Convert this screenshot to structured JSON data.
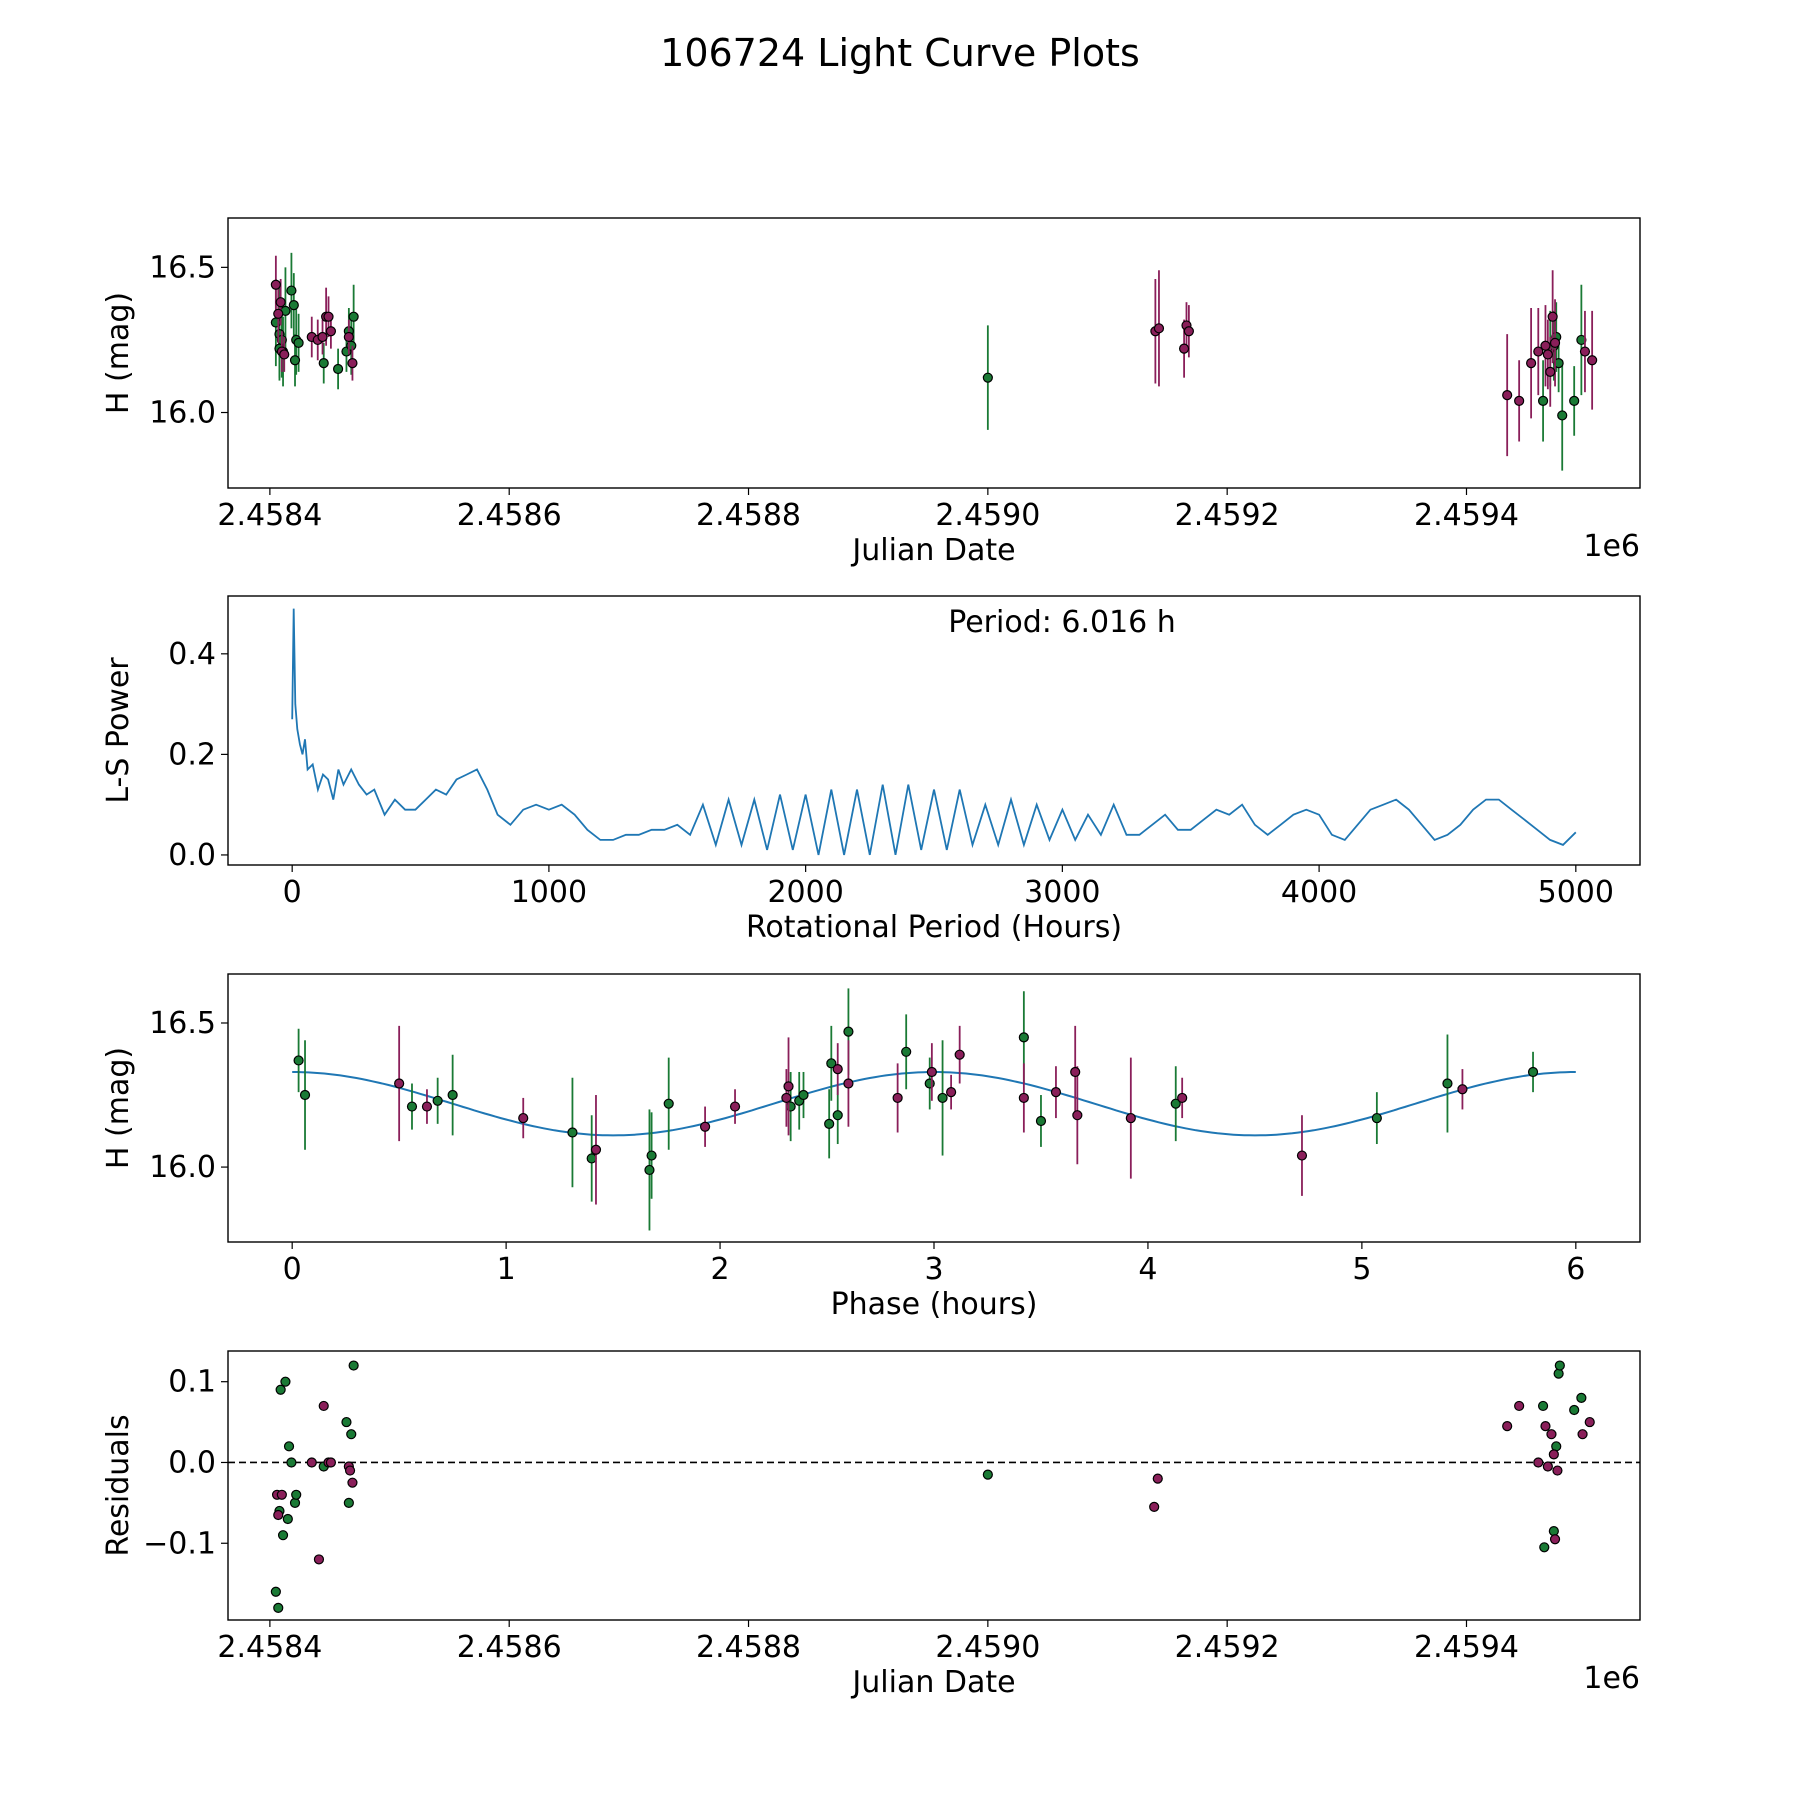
{
  "figure_title": "106724 Light Curve Plots",
  "colors": {
    "green": "#1a7a35",
    "purple": "#8a1f5a",
    "fit": "#1f77b4",
    "marker_edge": "#000000"
  },
  "chart_data": [
    {
      "id": "lightcurve",
      "type": "scatter",
      "title": "",
      "xlabel": "Julian Date",
      "ylabel": "H (mag)",
      "offset_label": "1e6",
      "xlim": [
        2458365,
        2459545
      ],
      "ylim": [
        15.74,
        16.67
      ],
      "xticks": [
        2458400,
        2458600,
        2458800,
        2459000,
        2459200,
        2459400
      ],
      "xtick_labels": [
        "2.4584",
        "2.4586",
        "2.4588",
        "2.4590",
        "2.4592",
        "2.4594"
      ],
      "yticks": [
        16.0,
        16.5
      ],
      "ytick_labels": [
        "16.0",
        "16.5"
      ],
      "series": [
        {
          "name": "green",
          "color": "#1a7a35",
          "x": [
            2458405,
            2458408,
            2458408,
            2458410,
            2458411,
            2458413,
            2458418,
            2458420,
            2458421,
            2458422,
            2458424,
            2458445,
            2458457,
            2458464,
            2458466,
            2458468,
            2458470,
            2459000,
            2459464,
            2459470,
            2459473,
            2459475,
            2459477,
            2459480,
            2459490,
            2459496
          ],
          "y": [
            16.31,
            16.27,
            16.22,
            16.25,
            16.21,
            16.35,
            16.42,
            16.37,
            16.18,
            16.25,
            16.24,
            16.17,
            16.15,
            16.21,
            16.28,
            16.23,
            16.33,
            16.12,
            16.04,
            16.22,
            16.23,
            16.26,
            16.17,
            15.99,
            16.04,
            16.25
          ],
          "err": [
            0.15,
            0.16,
            0.1,
            0.13,
            0.12,
            0.15,
            0.13,
            0.11,
            0.09,
            0.12,
            0.1,
            0.07,
            0.07,
            0.07,
            0.08,
            0.1,
            0.11,
            0.18,
            0.14,
            0.13,
            0.12,
            0.12,
            0.1,
            0.19,
            0.12,
            0.19
          ]
        },
        {
          "name": "purple",
          "color": "#8a1f5a",
          "x": [
            2458405,
            2458407,
            2458409,
            2458410,
            2458412,
            2458435,
            2458440,
            2458444,
            2458447,
            2458449,
            2458451,
            2458466,
            2458469,
            2459140,
            2459143,
            2459164,
            2459166,
            2459168,
            2459434,
            2459444,
            2459454,
            2459460,
            2459466,
            2459468,
            2459470,
            2459472,
            2459474,
            2459499,
            2459505
          ],
          "y": [
            16.44,
            16.34,
            16.38,
            16.21,
            16.2,
            16.26,
            16.25,
            16.26,
            16.33,
            16.33,
            16.28,
            16.26,
            16.17,
            16.28,
            16.29,
            16.22,
            16.3,
            16.28,
            16.06,
            16.04,
            16.17,
            16.21,
            16.23,
            16.2,
            16.14,
            16.33,
            16.24,
            16.21,
            16.18
          ],
          "err": [
            0.1,
            0.1,
            0.08,
            0.07,
            0.06,
            0.07,
            0.07,
            0.06,
            0.1,
            0.07,
            0.06,
            0.06,
            0.06,
            0.18,
            0.2,
            0.1,
            0.08,
            0.09,
            0.21,
            0.14,
            0.19,
            0.15,
            0.14,
            0.12,
            0.12,
            0.16,
            0.15,
            0.14,
            0.17
          ]
        }
      ]
    },
    {
      "id": "periodogram",
      "type": "line",
      "title": "",
      "xlabel": "Rotational Period (Hours)",
      "ylabel": "L-S Power",
      "annotation": "Period: 6.016 h",
      "xlim": [
        -250,
        5250
      ],
      "ylim": [
        -0.02,
        0.515
      ],
      "xticks": [
        0,
        1000,
        2000,
        3000,
        4000,
        5000
      ],
      "xtick_labels": [
        "0",
        "1000",
        "2000",
        "3000",
        "4000",
        "5000"
      ],
      "yticks": [
        0.0,
        0.2,
        0.4
      ],
      "ytick_labels": [
        "0.0",
        "0.2",
        "0.4"
      ],
      "series": [
        {
          "name": "L-S Power",
          "color": "#1f77b4",
          "x": [
            0,
            6,
            12,
            20,
            30,
            40,
            50,
            60,
            80,
            100,
            120,
            140,
            160,
            180,
            200,
            230,
            260,
            290,
            320,
            360,
            400,
            440,
            480,
            520,
            560,
            600,
            640,
            680,
            720,
            760,
            800,
            850,
            900,
            950,
            1000,
            1050,
            1100,
            1150,
            1200,
            1250,
            1300,
            1350,
            1400,
            1450,
            1500,
            1550,
            1600,
            1650,
            1700,
            1750,
            1800,
            1850,
            1900,
            1950,
            2000,
            2050,
            2100,
            2150,
            2200,
            2250,
            2300,
            2350,
            2400,
            2450,
            2500,
            2550,
            2600,
            2650,
            2700,
            2750,
            2800,
            2850,
            2900,
            2950,
            3000,
            3050,
            3100,
            3150,
            3200,
            3250,
            3300,
            3350,
            3400,
            3450,
            3500,
            3550,
            3600,
            3650,
            3700,
            3750,
            3800,
            3850,
            3900,
            3950,
            4000,
            4050,
            4100,
            4150,
            4200,
            4250,
            4300,
            4350,
            4400,
            4450,
            4500,
            4550,
            4600,
            4650,
            4700,
            4750,
            4800,
            4850,
            4900,
            4950,
            5000
          ],
          "y": [
            0.27,
            0.49,
            0.3,
            0.25,
            0.22,
            0.2,
            0.23,
            0.17,
            0.18,
            0.13,
            0.16,
            0.15,
            0.11,
            0.17,
            0.14,
            0.17,
            0.14,
            0.12,
            0.13,
            0.08,
            0.11,
            0.09,
            0.09,
            0.11,
            0.13,
            0.12,
            0.15,
            0.16,
            0.17,
            0.13,
            0.08,
            0.06,
            0.09,
            0.1,
            0.09,
            0.1,
            0.08,
            0.05,
            0.03,
            0.03,
            0.04,
            0.04,
            0.05,
            0.05,
            0.06,
            0.04,
            0.1,
            0.02,
            0.11,
            0.02,
            0.11,
            0.01,
            0.12,
            0.01,
            0.12,
            0.0,
            0.13,
            0.0,
            0.13,
            0.0,
            0.14,
            0.0,
            0.14,
            0.01,
            0.13,
            0.01,
            0.13,
            0.02,
            0.1,
            0.02,
            0.11,
            0.02,
            0.1,
            0.03,
            0.09,
            0.03,
            0.08,
            0.04,
            0.1,
            0.04,
            0.04,
            0.06,
            0.08,
            0.05,
            0.05,
            0.07,
            0.09,
            0.08,
            0.1,
            0.06,
            0.04,
            0.06,
            0.08,
            0.09,
            0.08,
            0.04,
            0.03,
            0.06,
            0.09,
            0.1,
            0.11,
            0.09,
            0.06,
            0.03,
            0.04,
            0.06,
            0.09,
            0.11,
            0.11,
            0.09,
            0.07,
            0.05,
            0.03,
            0.02,
            0.045
          ]
        }
      ]
    },
    {
      "id": "phased",
      "type": "scatter",
      "title": "",
      "xlabel": "Phase (hours)",
      "ylabel": "H (mag)",
      "xlim": [
        -0.3,
        6.3
      ],
      "ylim": [
        15.74,
        16.67
      ],
      "xticks": [
        0,
        1,
        2,
        3,
        4,
        5,
        6
      ],
      "xtick_labels": [
        "0",
        "1",
        "2",
        "3",
        "4",
        "5",
        "6"
      ],
      "yticks": [
        16.0,
        16.5
      ],
      "ytick_labels": [
        "16.0",
        "16.5"
      ],
      "fit": {
        "name": "fit",
        "color": "#1f77b4",
        "mean": 16.22,
        "amplitude": 0.11,
        "period": 3.0,
        "x_range": [
          0,
          6
        ]
      },
      "series": [
        {
          "name": "green",
          "color": "#1a7a35",
          "x": [
            0.03,
            0.06,
            0.56,
            0.68,
            0.75,
            1.31,
            1.4,
            1.67,
            1.68,
            1.76,
            2.33,
            2.37,
            2.39,
            2.51,
            2.52,
            2.55,
            2.6,
            2.87,
            2.98,
            3.04,
            3.42,
            3.5,
            4.13,
            5.07,
            5.4,
            5.8
          ],
          "y": [
            16.37,
            16.25,
            16.21,
            16.23,
            16.25,
            16.12,
            16.03,
            15.99,
            16.04,
            16.22,
            16.21,
            16.23,
            16.25,
            16.15,
            16.36,
            16.18,
            16.47,
            16.4,
            16.29,
            16.24,
            16.45,
            16.16,
            16.22,
            16.17,
            16.29,
            16.33
          ],
          "err": [
            0.11,
            0.19,
            0.08,
            0.08,
            0.14,
            0.19,
            0.15,
            0.21,
            0.15,
            0.16,
            0.12,
            0.1,
            0.08,
            0.12,
            0.13,
            0.1,
            0.15,
            0.13,
            0.09,
            0.2,
            0.16,
            0.09,
            0.13,
            0.09,
            0.17,
            0.07
          ]
        },
        {
          "name": "purple",
          "color": "#8a1f5a",
          "x": [
            0.5,
            0.63,
            1.08,
            1.42,
            1.93,
            2.07,
            2.31,
            2.32,
            2.55,
            2.6,
            2.83,
            2.99,
            3.08,
            3.12,
            3.42,
            3.57,
            3.66,
            3.67,
            3.92,
            4.16,
            4.72,
            5.47
          ],
          "y": [
            16.29,
            16.21,
            16.17,
            16.06,
            16.14,
            16.21,
            16.24,
            16.28,
            16.34,
            16.29,
            16.24,
            16.33,
            16.26,
            16.39,
            16.24,
            16.26,
            16.33,
            16.18,
            16.17,
            16.24,
            16.04,
            16.27
          ],
          "err": [
            0.2,
            0.06,
            0.07,
            0.19,
            0.07,
            0.06,
            0.1,
            0.17,
            0.09,
            0.15,
            0.12,
            0.1,
            0.06,
            0.1,
            0.12,
            0.09,
            0.16,
            0.17,
            0.21,
            0.07,
            0.14,
            0.07
          ]
        }
      ]
    },
    {
      "id": "residuals",
      "type": "scatter",
      "title": "",
      "xlabel": "Julian Date",
      "ylabel": "Residuals",
      "offset_label": "1e6",
      "xlim": [
        2458365,
        2459545
      ],
      "ylim": [
        -0.195,
        0.138
      ],
      "xticks": [
        2458400,
        2458600,
        2458800,
        2459000,
        2459200,
        2459400
      ],
      "xtick_labels": [
        "2.4584",
        "2.4586",
        "2.4588",
        "2.4590",
        "2.4592",
        "2.4594"
      ],
      "yticks": [
        -0.1,
        0.0,
        0.1
      ],
      "ytick_labels": [
        "−0.1",
        "0.0",
        "0.1"
      ],
      "zero_line": 0.0,
      "series": [
        {
          "name": "green",
          "color": "#1a7a35",
          "x": [
            2458405,
            2458407,
            2458408,
            2458409,
            2458411,
            2458413,
            2458415,
            2458416,
            2458418,
            2458421,
            2458422,
            2458445,
            2458470,
            2458464,
            2458466,
            2458468,
            2459000,
            2459464,
            2459465,
            2459473,
            2459475,
            2459477,
            2459478,
            2459490,
            2459496
          ],
          "y": [
            -0.16,
            -0.18,
            -0.06,
            0.09,
            -0.09,
            0.1,
            -0.07,
            0.02,
            0.0,
            -0.05,
            -0.04,
            -0.005,
            0.12,
            0.05,
            -0.05,
            0.035,
            -0.015,
            0.07,
            -0.105,
            -0.085,
            0.02,
            0.11,
            0.12,
            0.065,
            0.08
          ],
          "err": []
        },
        {
          "name": "purple",
          "color": "#8a1f5a",
          "x": [
            2458406,
            2458407,
            2458410,
            2458435,
            2458441,
            2458445,
            2458449,
            2458451,
            2458466,
            2458467,
            2458469,
            2459139,
            2459142,
            2459434,
            2459444,
            2459460,
            2459466,
            2459468,
            2459471,
            2459473,
            2459474,
            2459476,
            2459497,
            2459503
          ],
          "y": [
            -0.04,
            -0.065,
            -0.04,
            0.0,
            -0.12,
            0.07,
            0.0,
            0.0,
            -0.005,
            -0.01,
            -0.025,
            -0.055,
            -0.02,
            0.045,
            0.07,
            0.0,
            0.045,
            -0.005,
            0.035,
            0.01,
            -0.095,
            -0.01,
            0.035,
            0.05
          ],
          "err": []
        }
      ]
    }
  ]
}
